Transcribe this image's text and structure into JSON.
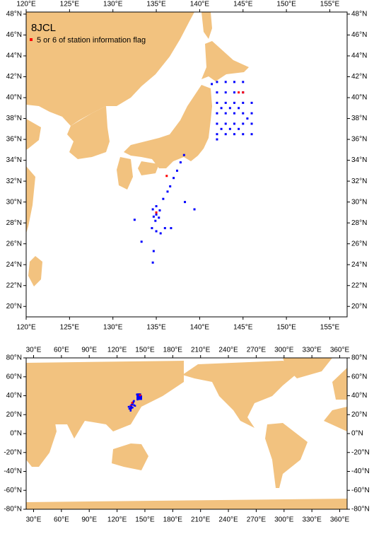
{
  "maps": [
    {
      "title": "8JCL",
      "legend": "5 or 6 of station information flag",
      "xlim": [
        120,
        157
      ],
      "ylim": [
        19,
        48.2
      ],
      "xticks": [
        {
          "value": 120,
          "label": "120°E"
        },
        {
          "value": 125,
          "label": "125°E"
        },
        {
          "value": 130,
          "label": "130°E"
        },
        {
          "value": 135,
          "label": "135°E"
        },
        {
          "value": 140,
          "label": "140°E"
        },
        {
          "value": 145,
          "label": "145°E"
        },
        {
          "value": 150,
          "label": "150°E"
        },
        {
          "value": 155,
          "label": "155°E"
        }
      ],
      "yticks": [
        {
          "value": 20,
          "label": "20°N"
        },
        {
          "value": 22,
          "label": "22°N"
        },
        {
          "value": 24,
          "label": "24°N"
        },
        {
          "value": 26,
          "label": "26°N"
        },
        {
          "value": 28,
          "label": "28°N"
        },
        {
          "value": 30,
          "label": "30°N"
        },
        {
          "value": 32,
          "label": "32°N"
        },
        {
          "value": 34,
          "label": "34°N"
        },
        {
          "value": 36,
          "label": "36°N"
        },
        {
          "value": 38,
          "label": "38°N"
        },
        {
          "value": 40,
          "label": "40°N"
        },
        {
          "value": 42,
          "label": "42°N"
        },
        {
          "value": 44,
          "label": "44°N"
        },
        {
          "value": 46,
          "label": "46°N"
        },
        {
          "value": 48,
          "label": "48°N"
        }
      ]
    },
    {
      "xlim": [
        22,
        368
      ],
      "ylim": [
        -80,
        80
      ],
      "xticks": [
        {
          "value": 30,
          "label": "30°E"
        },
        {
          "value": 60,
          "label": "60°E"
        },
        {
          "value": 90,
          "label": "90°E"
        },
        {
          "value": 120,
          "label": "120°E"
        },
        {
          "value": 150,
          "label": "150°E"
        },
        {
          "value": 180,
          "label": "180°E"
        },
        {
          "value": 210,
          "label": "210°E"
        },
        {
          "value": 240,
          "label": "240°E"
        },
        {
          "value": 270,
          "label": "270°E"
        },
        {
          "value": 300,
          "label": "300°E"
        },
        {
          "value": 330,
          "label": "330°E"
        },
        {
          "value": 360,
          "label": "360°E"
        }
      ],
      "yticks": [
        {
          "value": -80,
          "label": "-80°N"
        },
        {
          "value": -60,
          "label": "-60°N"
        },
        {
          "value": -40,
          "label": "-40°N"
        },
        {
          "value": -20,
          "label": "-20°N"
        },
        {
          "value": 0,
          "label": "0°N"
        },
        {
          "value": 20,
          "label": "20°N"
        },
        {
          "value": 40,
          "label": "40°N"
        },
        {
          "value": 60,
          "label": "60°N"
        },
        {
          "value": 80,
          "label": "80°N"
        }
      ]
    }
  ],
  "colors": {
    "station": "#0000ff",
    "flagged": "#ff0000",
    "land": "#f2c27f"
  },
  "stations": {
    "lon": [
      142,
      143,
      144,
      145,
      146,
      142,
      143,
      144,
      145,
      146,
      142,
      143,
      144,
      145,
      146,
      142,
      143,
      144,
      145,
      146,
      142,
      143,
      144,
      145,
      142,
      143,
      144,
      145,
      142.5,
      143.5,
      144.5,
      145.5,
      142.5,
      143.5,
      144.5,
      138.2,
      137.8,
      137.4,
      137.0,
      136.6,
      136.3,
      135.8,
      134.6,
      135.0,
      135.4,
      135.0,
      134.7,
      135.3,
      135.0,
      134.9,
      134.5,
      135.0,
      135.5,
      134.7,
      134.6,
      133.3,
      132.5,
      136.0,
      136.7,
      139.4,
      138.3,
      136.2,
      141.4,
      145.0,
      144.5,
      142.0
    ],
    "lat": [
      36.5,
      36.5,
      36.5,
      36.5,
      36.5,
      37.5,
      37.5,
      37.5,
      37.5,
      37.5,
      38.5,
      38.5,
      38.5,
      38.5,
      38.5,
      39.5,
      39.5,
      39.5,
      39.5,
      39.5,
      40.5,
      40.5,
      40.5,
      40.5,
      41.5,
      41.5,
      41.5,
      41.5,
      37,
      37,
      37,
      38,
      39,
      39,
      39,
      34.5,
      33.8,
      33.0,
      32.3,
      31.5,
      31.0,
      30.3,
      29.3,
      29.6,
      29.2,
      28.8,
      28.6,
      28.5,
      29.0,
      28.2,
      27.5,
      27.2,
      27.0,
      25.3,
      24.2,
      26.2,
      28.3,
      27.5,
      27.5,
      29.3,
      30.0,
      32.5,
      41.3,
      40.5,
      40.5,
      36.0
    ],
    "flagged": [
      false,
      false,
      false,
      false,
      false,
      false,
      false,
      false,
      false,
      false,
      false,
      false,
      false,
      false,
      false,
      false,
      false,
      false,
      false,
      false,
      false,
      false,
      false,
      false,
      false,
      false,
      false,
      false,
      false,
      false,
      false,
      false,
      false,
      false,
      false,
      false,
      false,
      false,
      false,
      false,
      false,
      false,
      false,
      false,
      false,
      false,
      false,
      false,
      true,
      false,
      false,
      false,
      false,
      false,
      false,
      false,
      false,
      false,
      false,
      false,
      false,
      true,
      false,
      true,
      true,
      false
    ]
  }
}
